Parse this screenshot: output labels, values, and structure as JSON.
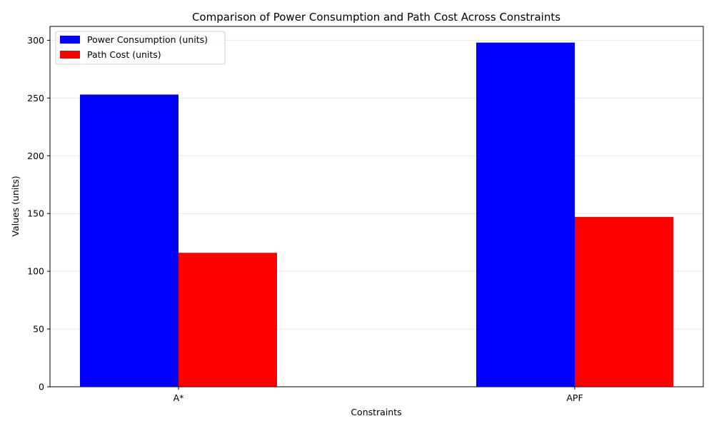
{
  "chart_data": {
    "type": "bar",
    "title": "Comparison of Power Consumption and Path Cost Across Constraints",
    "xlabel": "Constraints",
    "ylabel": "Values (units)",
    "categories": [
      "A*",
      "APF"
    ],
    "series": [
      {
        "name": "Power Consumption (units)",
        "values": [
          253,
          298
        ],
        "color": "#0000ff"
      },
      {
        "name": "Path Cost (units)",
        "values": [
          116,
          147
        ],
        "color": "#ff0000"
      }
    ],
    "ylim": [
      0,
      312
    ],
    "yticks": [
      0,
      50,
      100,
      150,
      200,
      250,
      300
    ],
    "grid": "y-axis, light gray",
    "legend_position": "top-left"
  }
}
